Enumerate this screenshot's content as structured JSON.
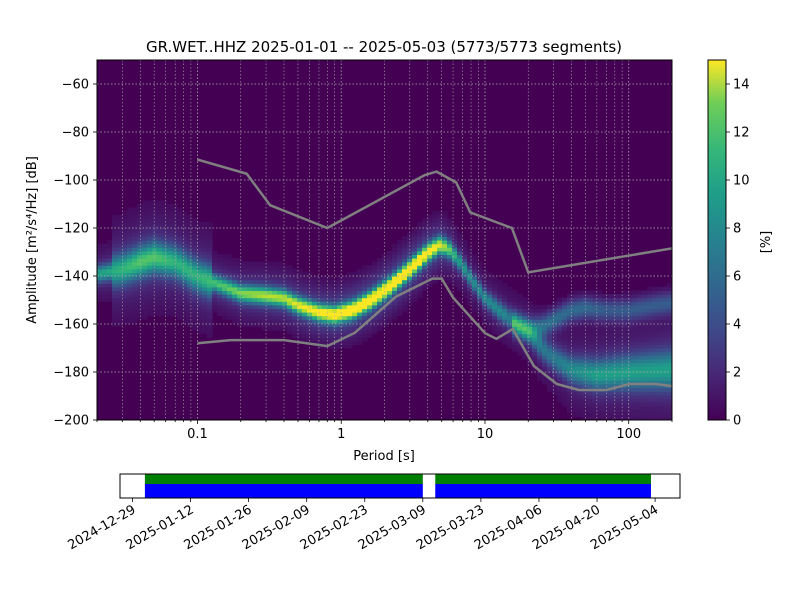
{
  "chart_data": [
    {
      "type": "heatmap",
      "title": "GR.WET..HHZ   2025-01-01 -- 2025-05-03  (5773/5773 segments)",
      "xlabel": "Period [s]",
      "ylabel": "Amplitude [m²/s⁴/Hz] [dB]",
      "xscale": "log",
      "xlim": [
        0.02,
        200
      ],
      "ylim": [
        -200,
        -50
      ],
      "x_ticks": [
        {
          "value": 0.1,
          "label": "0.1"
        },
        {
          "value": 1,
          "label": "1"
        },
        {
          "value": 10,
          "label": "10"
        },
        {
          "value": 100,
          "label": "100"
        }
      ],
      "y_ticks": [
        -200,
        -180,
        -160,
        -140,
        -120,
        -100,
        -80,
        -60
      ],
      "grid": true,
      "colorbar": {
        "label": "[%]",
        "range": [
          0,
          15
        ],
        "ticks": [
          0,
          2,
          4,
          6,
          8,
          10,
          12,
          14
        ]
      },
      "density_ridge": {
        "period": [
          0.02,
          0.03,
          0.04,
          0.05,
          0.07,
          0.1,
          0.15,
          0.2,
          0.3,
          0.4,
          0.5,
          0.7,
          0.9,
          1.2,
          1.6,
          2.2,
          3,
          4,
          4.8,
          5.5,
          6.5,
          8,
          10,
          13,
          16,
          20,
          25,
          30,
          40,
          60,
          100,
          200
        ],
        "amplitude_db": [
          -139,
          -137,
          -134,
          -132,
          -134,
          -140,
          -144,
          -147,
          -148,
          -149,
          -152,
          -155,
          -156,
          -154,
          -150,
          -144,
          -137,
          -130,
          -127,
          -128,
          -133,
          -141,
          -149,
          -155,
          -159,
          -163,
          -170,
          -174,
          -179,
          -181,
          -180,
          -179
        ],
        "peak_percent": [
          7,
          8,
          9,
          9,
          8,
          8,
          9,
          10,
          11,
          11,
          12,
          13,
          14,
          15,
          15,
          15,
          15,
          14,
          12,
          10,
          7,
          6,
          6,
          6,
          5,
          5,
          5,
          5,
          6,
          7,
          7,
          7
        ]
      },
      "secondary_ridge": {
        "period": [
          16,
          20,
          25,
          30,
          40,
          50,
          70,
          100,
          150,
          200
        ],
        "amplitude_db": [
          -160,
          -162,
          -161,
          -158,
          -154,
          -153,
          -154,
          -154,
          -152,
          -151
        ],
        "peak_percent": [
          5,
          5,
          5,
          5,
          5,
          5,
          4,
          4,
          4,
          4
        ]
      },
      "noise_model_high": {
        "period": [
          0.1,
          0.22,
          0.32,
          0.8,
          3.8,
          4.6,
          6.3,
          7.9,
          15.4,
          20,
          354
        ],
        "amplitude_db": [
          -91.5,
          -97.4,
          -110.5,
          -120,
          -98,
          -96.5,
          -101,
          -113.5,
          -120,
          -138.5,
          -126
        ]
      },
      "noise_model_low": {
        "period": [
          0.1,
          0.17,
          0.4,
          0.8,
          1.24,
          2.4,
          4.3,
          5,
          6,
          10,
          12,
          15.6,
          21.9,
          31.6,
          45,
          70,
          101,
          154,
          200
        ],
        "amplitude_db": [
          -168,
          -166.7,
          -166.7,
          -169.2,
          -163.7,
          -148.6,
          -141.1,
          -141.1,
          -149,
          -163.8,
          -166.2,
          -162.1,
          -177.5,
          -185,
          -187.5,
          -187.5,
          -185,
          -185,
          -185.9
        ]
      }
    },
    {
      "type": "timeline",
      "x_range": [
        "2024-12-26",
        "2025-05-10"
      ],
      "tick_labels": [
        "2024-12-29",
        "2025-01-12",
        "2025-01-26",
        "2025-02-09",
        "2025-02-23",
        "2025-03-09",
        "2025-03-23",
        "2025-04-06",
        "2025-04-20",
        "2025-05-04"
      ],
      "data_coverage": [
        {
          "start": "2025-01-01",
          "end": "2025-03-09",
          "color": "#0000ff"
        },
        {
          "start": "2025-03-12",
          "end": "2025-05-03",
          "color": "#0000ff"
        }
      ],
      "used_segments": [
        {
          "start": "2025-01-01",
          "end": "2025-03-09",
          "color": "#008000"
        },
        {
          "start": "2025-03-12",
          "end": "2025-05-03",
          "color": "#008000"
        }
      ]
    }
  ]
}
